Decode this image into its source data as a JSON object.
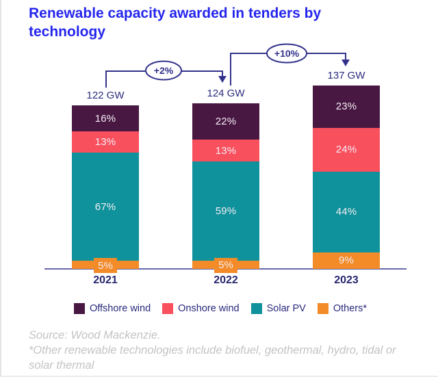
{
  "title": "Renewable capacity awarded in tenders by technology",
  "chart_data": {
    "type": "bar",
    "stacked": true,
    "orientation": "vertical",
    "categories": [
      "2021",
      "2022",
      "2023"
    ],
    "totals_gw": [
      122,
      124,
      137
    ],
    "total_labels": [
      "122 GW",
      "124 GW",
      "137 GW"
    ],
    "unit": "%",
    "series": [
      {
        "name": "Offshore wind",
        "color": "#481843",
        "values_pct": [
          16,
          22,
          23
        ]
      },
      {
        "name": "Onshore wind",
        "color": "#f9505e",
        "values_pct": [
          13,
          13,
          24
        ]
      },
      {
        "name": "Solar PV",
        "color": "#0f929b",
        "values_pct": [
          67,
          59,
          44
        ]
      },
      {
        "name": "Others*",
        "color": "#f28b28",
        "values_pct": [
          5,
          5,
          9
        ]
      }
    ],
    "growth_annotations": [
      {
        "label": "+2%",
        "from": "2021",
        "to": "2022"
      },
      {
        "label": "+10%",
        "from": "2022",
        "to": "2023"
      }
    ],
    "xlabel": "",
    "ylabel": "",
    "grid": false,
    "legend_position": "bottom"
  },
  "footnote": {
    "source": "Source: Wood Mackenzie.",
    "note": "*Other renewable technologies include biofuel, geothermal, hydro, tidal or solar thermal"
  },
  "colors": {
    "title_text": "#2525ee",
    "annotation": "#32328c",
    "axis_line": "#6868ac",
    "axis_text": "#2b2b7e",
    "segment_label_text": "#f4edf3",
    "footnote_text": "#c3c3c3"
  }
}
